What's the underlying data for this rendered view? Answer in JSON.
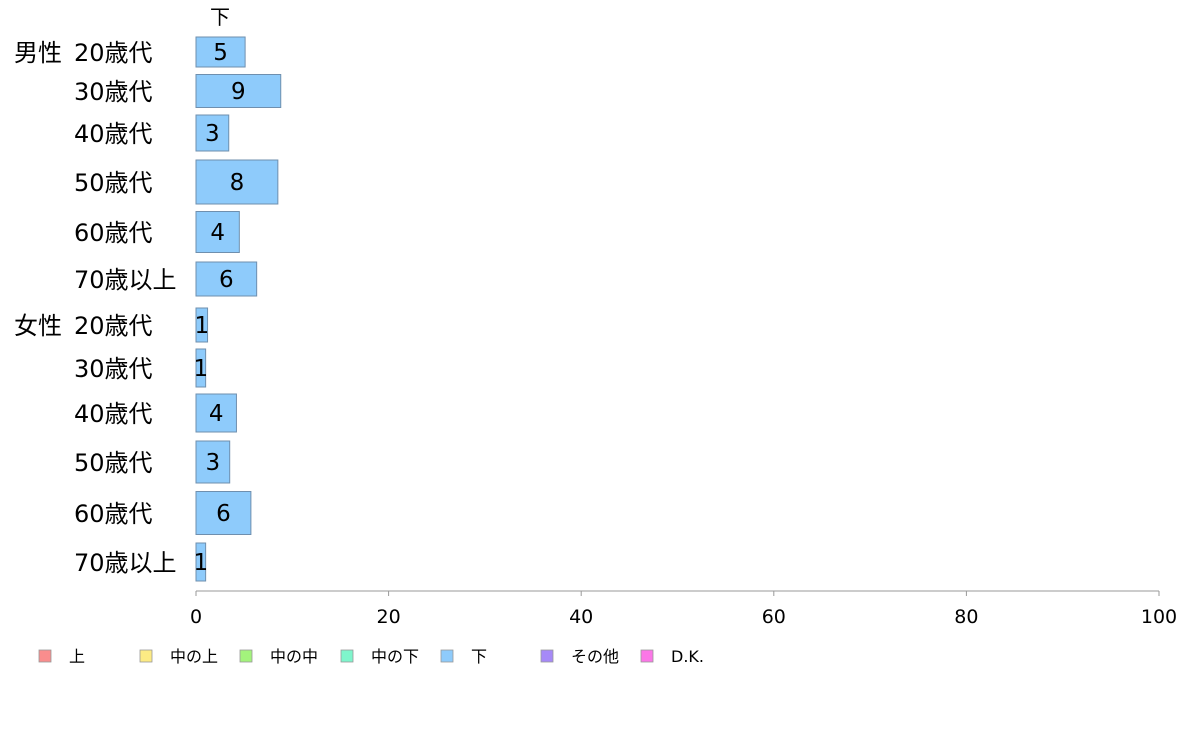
{
  "chart_data": {
    "type": "bar",
    "orientation": "horizontal",
    "stacked": true,
    "x_ticks": [
      "0",
      "20",
      "40",
      "60",
      "80",
      "100"
    ],
    "xlim": [
      0,
      100
    ],
    "categories": [
      {
        "group": "男性",
        "label": "20歳代"
      },
      {
        "group": "",
        "label": "30歳代"
      },
      {
        "group": "",
        "label": "40歳代"
      },
      {
        "group": "",
        "label": "50歳代"
      },
      {
        "group": "",
        "label": "60歳代"
      },
      {
        "group": "",
        "label": "70歳以上"
      },
      {
        "group": "女性",
        "label": "20歳代"
      },
      {
        "group": "",
        "label": "30歳代"
      },
      {
        "group": "",
        "label": "40歳代"
      },
      {
        "group": "",
        "label": "50歳代"
      },
      {
        "group": "",
        "label": "60歳代"
      },
      {
        "group": "",
        "label": "70歳以上"
      }
    ],
    "series": [
      {
        "name": "下",
        "color": "#8ecbfb",
        "values": [
          5,
          9,
          3,
          8,
          4,
          6,
          1,
          1,
          4,
          3,
          6,
          1
        ],
        "bar_values": [
          5.1,
          8.8,
          3.4,
          8.5,
          4.5,
          6.3,
          1.2,
          1.0,
          4.2,
          3.5,
          5.7,
          1.0
        ],
        "labels": [
          "5",
          "9",
          "3",
          "8",
          "4",
          "6",
          "1",
          "1",
          "4",
          "3",
          "6",
          "1"
        ]
      }
    ],
    "legend": [
      {
        "name": "上",
        "color": "#f98d8d"
      },
      {
        "name": "中の上",
        "color": "#fdeb84"
      },
      {
        "name": "中の中",
        "color": "#a3f37c"
      },
      {
        "name": "中の下",
        "color": "#7ff5cc"
      },
      {
        "name": "下",
        "color": "#8ecbfb"
      },
      {
        "name": "その他",
        "color": "#a689f7"
      },
      {
        "name": "D.K.",
        "color": "#fb77e7"
      }
    ],
    "legend_position": "bottom-left",
    "grid": false
  }
}
